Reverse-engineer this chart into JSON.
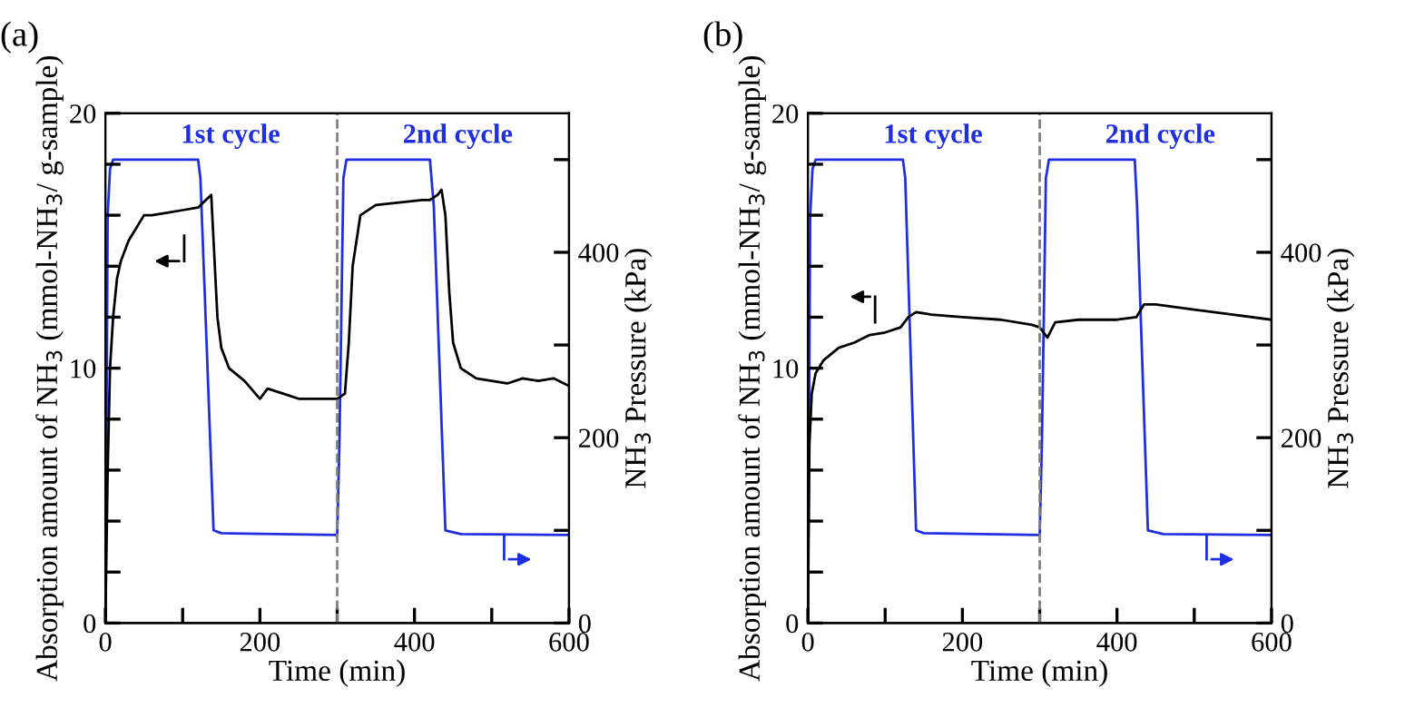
{
  "chart_data": [
    {
      "type": "line",
      "title": "(a)",
      "xlabel": "Time (min)",
      "ylabel": "Absorption amount of NH$_{3}$ (mmol-NH$_{3}$/ g-sample)",
      "y2label": "NH$_{3}$ Pressure (kPa)",
      "xlim": [
        0,
        600
      ],
      "xticks": [
        0,
        {
          "value": 100,
          "label": null
        },
        200,
        {
          "value": 300,
          "label": null
        },
        400,
        {
          "value": 500,
          "label": null
        },
        600
      ],
      "ylim": [
        0,
        20
      ],
      "yticks": [
        0,
        {
          "value": 2,
          "label": null
        },
        {
          "value": 4,
          "label": null
        },
        {
          "value": 6,
          "label": null
        },
        {
          "value": 8,
          "label": null
        },
        10,
        {
          "value": 12,
          "label": null
        },
        {
          "value": 14,
          "label": null
        },
        {
          "value": 16,
          "label": null
        },
        {
          "value": 18,
          "label": null
        },
        20
      ],
      "y2lim": [
        0,
        550
      ],
      "y2ticks": [
        0,
        {
          "value": 100,
          "label": null
        },
        200,
        {
          "value": 300,
          "label": null
        },
        400,
        {
          "value": 500,
          "label": null
        }
      ],
      "grid": false,
      "legend": false,
      "line_style": "solid",
      "marker": "none",
      "ref_lines": [
        {
          "axis": "x",
          "value": 300,
          "color": "#808080",
          "line_style": "dashed"
        }
      ],
      "annotations": [
        "1st cycle",
        "2nd cycle"
      ],
      "series": [
        {
          "color": "#000000",
          "x": [
            0,
            3,
            6,
            10,
            15,
            20,
            30,
            40,
            50,
            60,
            80,
            100,
            120,
            130,
            137,
            140,
            145,
            150,
            160,
            180,
            200,
            210,
            230,
            250,
            270,
            290,
            300,
            310,
            315,
            320,
            330,
            350,
            380,
            410,
            420,
            430,
            435,
            440,
            445,
            450,
            460,
            480,
            500,
            520,
            540,
            560,
            580,
            600
          ],
          "values": [
            0,
            6,
            10,
            12,
            13.5,
            14.2,
            15,
            15.5,
            16,
            16,
            16.1,
            16.2,
            16.3,
            16.6,
            16.8,
            15,
            12,
            10.8,
            10,
            9.5,
            8.8,
            9.2,
            9,
            8.8,
            8.8,
            8.8,
            8.8,
            9.0,
            11,
            14,
            16,
            16.4,
            16.5,
            16.6,
            16.6,
            16.8,
            17,
            16,
            13,
            11,
            10,
            9.6,
            9.5,
            9.4,
            9.6,
            9.5,
            9.6,
            9.3
          ]
        },
        {
          "color": "#1f2fe0",
          "axis": "y2",
          "x": [
            0,
            3,
            6,
            10,
            120,
            123,
            140,
            150,
            300,
            303,
            308,
            312,
            420,
            425,
            440,
            460,
            600
          ],
          "values": [
            0,
            440,
            490,
            500,
            500,
            480,
            100,
            97,
            95,
            200,
            480,
            500,
            500,
            450,
            100,
            96,
            95
          ]
        }
      ]
    },
    {
      "type": "line",
      "title": "(b)",
      "xlabel": "Time (min)",
      "ylabel": "Absorption amount of NH$_{3}$ (mmol-NH$_{3}$/ g-sample)",
      "y2label": "NH$_{3}$ Pressure (kPa)",
      "xlim": [
        0,
        600
      ],
      "xticks": [
        0,
        {
          "value": 100,
          "label": null
        },
        200,
        {
          "value": 300,
          "label": null
        },
        400,
        {
          "value": 500,
          "label": null
        },
        600
      ],
      "ylim": [
        0,
        20
      ],
      "yticks": [
        0,
        {
          "value": 2,
          "label": null
        },
        {
          "value": 4,
          "label": null
        },
        {
          "value": 6,
          "label": null
        },
        {
          "value": 8,
          "label": null
        },
        10,
        {
          "value": 12,
          "label": null
        },
        {
          "value": 14,
          "label": null
        },
        {
          "value": 16,
          "label": null
        },
        {
          "value": 18,
          "label": null
        },
        20
      ],
      "y2lim": [
        0,
        550
      ],
      "y2ticks": [
        0,
        {
          "value": 100,
          "label": null
        },
        200,
        {
          "value": 300,
          "label": null
        },
        400,
        {
          "value": 500,
          "label": null
        }
      ],
      "grid": false,
      "legend": false,
      "line_style": "solid",
      "marker": "none",
      "ref_lines": [
        {
          "axis": "x",
          "value": 300,
          "color": "#808080",
          "line_style": "dashed"
        }
      ],
      "annotations": [
        "1st cycle",
        "2nd cycle"
      ],
      "series": [
        {
          "color": "#000000",
          "x": [
            0,
            2,
            5,
            10,
            20,
            40,
            60,
            80,
            100,
            120,
            130,
            140,
            160,
            200,
            250,
            290,
            300,
            310,
            320,
            350,
            400,
            425,
            435,
            450,
            500,
            550,
            600
          ],
          "values": [
            0,
            7,
            9,
            9.8,
            10.3,
            10.8,
            11,
            11.3,
            11.4,
            11.6,
            12,
            12.2,
            12.1,
            12.0,
            11.9,
            11.7,
            11.6,
            11.2,
            11.8,
            11.9,
            11.9,
            12.0,
            12.5,
            12.5,
            12.3,
            12.1,
            11.9
          ]
        },
        {
          "color": "#1f2fe0",
          "axis": "y2",
          "x": [
            0,
            3,
            6,
            10,
            123,
            126,
            140,
            150,
            300,
            303,
            308,
            312,
            423,
            426,
            440,
            460,
            600
          ],
          "values": [
            0,
            440,
            490,
            500,
            500,
            480,
            100,
            97,
            95,
            200,
            480,
            500,
            500,
            450,
            100,
            96,
            95
          ]
        }
      ]
    }
  ]
}
